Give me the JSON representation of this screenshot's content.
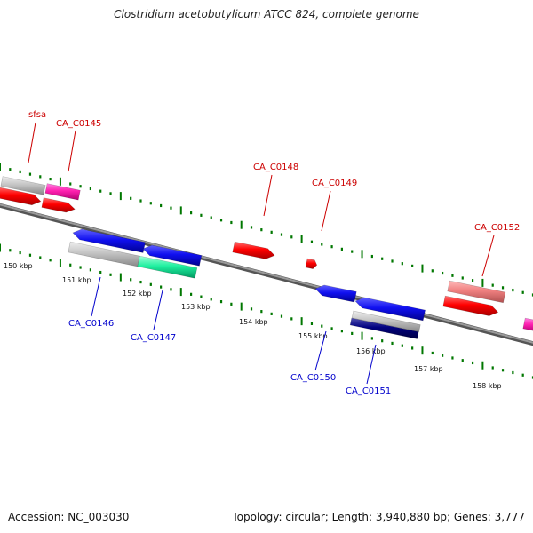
{
  "header": {
    "title": "Clostridium acetobutylicum ATCC 824, complete genome"
  },
  "footer": {
    "accession": "Accession: NC_003030",
    "summary": "Topology: circular; Length: 3,940,880 bp; Genes: 3,777"
  },
  "colors": {
    "plus_label": "#cc0000",
    "minus_label": "#0000cc",
    "axis": "#777777",
    "tick": "#007700"
  },
  "scale_ticks": [
    {
      "kbp": 150,
      "label": "150 kbp"
    },
    {
      "kbp": 151,
      "label": "151 kbp"
    },
    {
      "kbp": 152,
      "label": "152 kbp"
    },
    {
      "kbp": 153,
      "label": "153 kbp"
    },
    {
      "kbp": 154,
      "label": "154 kbp"
    },
    {
      "kbp": 155,
      "label": "155 kbp"
    },
    {
      "kbp": 156,
      "label": "156 kbp"
    },
    {
      "kbp": 157,
      "label": "157 kbp"
    },
    {
      "kbp": 158,
      "label": "158 kbp"
    }
  ],
  "labeled_genes": [
    {
      "name": "sfsa",
      "strand": "plus"
    },
    {
      "name": "CA_C0145",
      "strand": "plus"
    },
    {
      "name": "CA_C0146",
      "strand": "minus"
    },
    {
      "name": "CA_C0147",
      "strand": "minus"
    },
    {
      "name": "CA_C0148",
      "strand": "plus"
    },
    {
      "name": "CA_C0149",
      "strand": "plus"
    },
    {
      "name": "CA_C0150",
      "strand": "minus"
    },
    {
      "name": "CA_C0151",
      "strand": "minus"
    },
    {
      "name": "CA_C0152",
      "strand": "plus"
    }
  ]
}
